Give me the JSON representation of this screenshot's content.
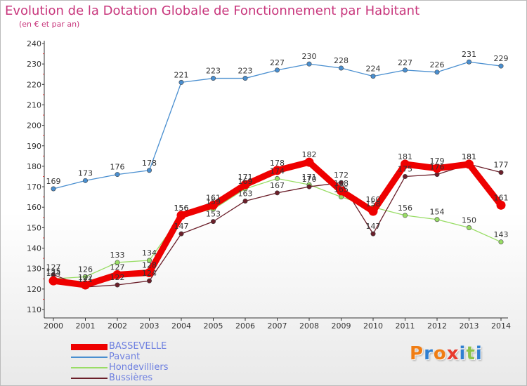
{
  "title": "Evolution de la Dotation Globale de Fonctionnement par Habitant",
  "subtitle": "(en € et par an)",
  "logo": {
    "text": "Proxiti",
    "letter_colors": [
      "#f07d14",
      "#2f7fd1",
      "#f07d14",
      "#e83b2e",
      "#2f7fd1",
      "#8bc34a",
      "#2f7fd1"
    ]
  },
  "chart_data": {
    "type": "line",
    "x": [
      "2000",
      "2001",
      "2002",
      "2003",
      "2004",
      "2005",
      "2006",
      "2007",
      "2008",
      "2009",
      "2010",
      "2011",
      "2012",
      "2013",
      "2014"
    ],
    "ylim": [
      110,
      240
    ],
    "yticks": [
      110,
      120,
      130,
      140,
      150,
      160,
      170,
      180,
      190,
      200,
      210,
      220,
      230,
      240
    ],
    "grid": false,
    "legend_position": "bottom-left",
    "series": [
      {
        "name": "Pavant",
        "color": "#4a8fd0",
        "values": [
          169,
          173,
          176,
          178,
          221,
          223,
          223,
          227,
          230,
          228,
          224,
          227,
          226,
          231,
          229
        ]
      },
      {
        "name": "Hondevilliers",
        "color": "#99dd66",
        "values": [
          125,
          126,
          133,
          134,
          156,
          159,
          169,
          174,
          171,
          165,
          160,
          156,
          154,
          150,
          143
        ]
      },
      {
        "name": "Bussières",
        "color": "#6b1f2a",
        "values": [
          127,
          121,
          122,
          124,
          147,
          153,
          163,
          167,
          170,
          172,
          147,
          175,
          176,
          181,
          177
        ]
      },
      {
        "name": "BASSEVELLE",
        "color": "#ee0000",
        "values": [
          124,
          122,
          127,
          128,
          156,
          161,
          171,
          178,
          182,
          168,
          158,
          181,
          179,
          181,
          161
        ]
      }
    ],
    "legend_order": [
      "BASSEVELLE",
      "Pavant",
      "Hondevilliers",
      "Bussières"
    ]
  }
}
